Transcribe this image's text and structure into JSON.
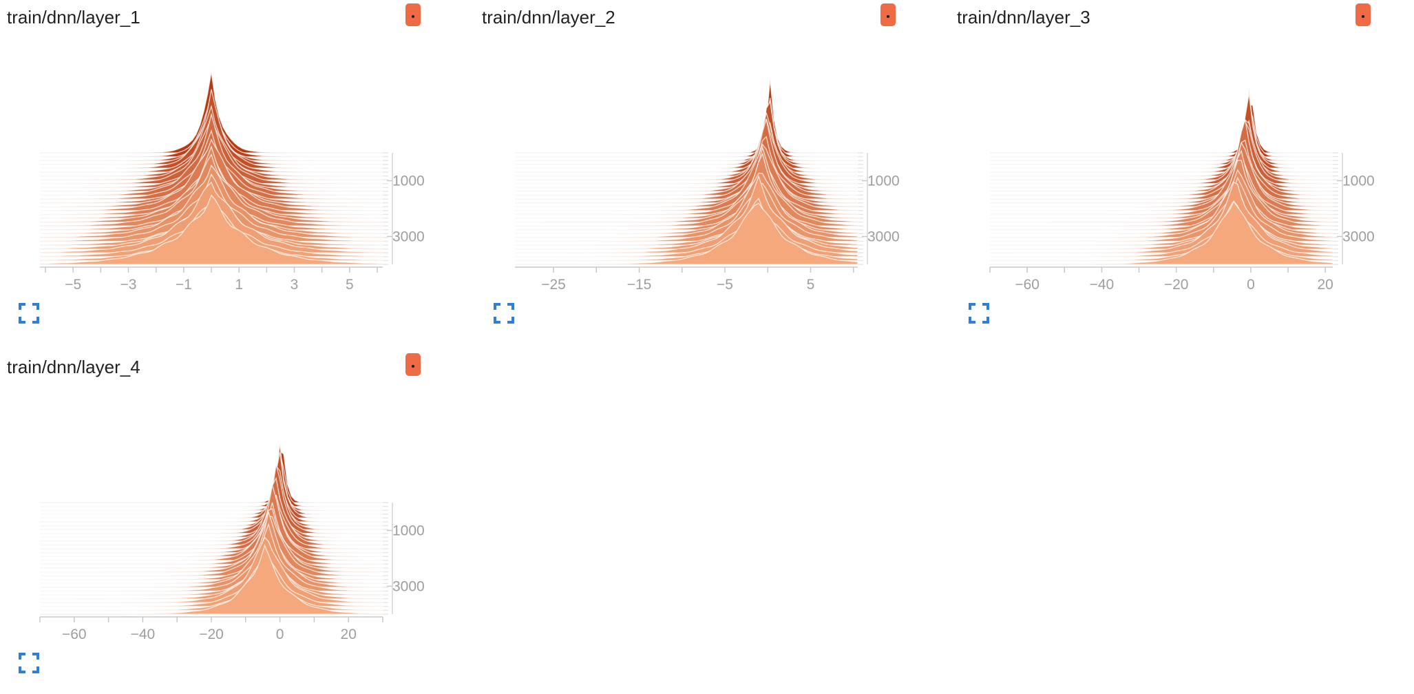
{
  "colors": {
    "dark": "#b53a12",
    "light": "#f4a87c",
    "chip": "#ef6b45",
    "grid": "#e6e6e6",
    "axis": "#c8c8c8",
    "tick_text": "#9e9e9e",
    "expand_icon": "#2f7fd8"
  },
  "cards": [
    {
      "title": "train/dnn/layer_1"
    },
    {
      "title": "train/dnn/layer_2"
    },
    {
      "title": "train/dnn/layer_3"
    },
    {
      "title": "train/dnn/layer_4"
    }
  ],
  "chart_data": [
    {
      "type": "area",
      "title": "train/dnn/layer_1",
      "xlim": [
        -6.2,
        6.2
      ],
      "x_ticks": [
        -5,
        -3,
        -1,
        1,
        3,
        5
      ],
      "x_tick_labels": [
        "−5",
        "−3",
        "−1",
        "1",
        "3",
        "5"
      ],
      "step_ticks": [
        1000,
        3000
      ],
      "step_tick_labels": [
        "1000",
        "3000"
      ],
      "step_range": [
        0,
        4000
      ],
      "num_steps": 30,
      "first_step": {
        "center": 0.0,
        "width": 0.45
      },
      "last_step": {
        "center": 0.0,
        "width": 1.6
      }
    },
    {
      "type": "area",
      "title": "train/dnn/layer_2",
      "xlim": [
        -29.5,
        10.5
      ],
      "x_ticks": [
        -25,
        -15,
        -5,
        5
      ],
      "x_tick_labels": [
        "−25",
        "−15",
        "−5",
        "5"
      ],
      "step_ticks": [
        1000,
        3000
      ],
      "step_tick_labels": [
        "1000",
        "3000"
      ],
      "step_range": [
        0,
        4000
      ],
      "num_steps": 30,
      "first_step": {
        "center": 0.3,
        "width": 0.6
      },
      "last_step": {
        "center": -1.2,
        "width": 4.0
      }
    },
    {
      "type": "area",
      "title": "train/dnn/layer_3",
      "xlim": [
        -70,
        22
      ],
      "x_ticks": [
        -60,
        -40,
        -20,
        0,
        20
      ],
      "x_tick_labels": [
        "−60",
        "−40",
        "−20",
        "0",
        "20"
      ],
      "step_ticks": [
        1000,
        3000
      ],
      "step_tick_labels": [
        "1000",
        "3000"
      ],
      "step_range": [
        0,
        4000
      ],
      "num_steps": 30,
      "first_step": {
        "center": 0.0,
        "width": 1.3
      },
      "last_step": {
        "center": -4.5,
        "width": 8.0
      }
    },
    {
      "type": "area",
      "title": "train/dnn/layer_4",
      "xlim": [
        -70,
        30
      ],
      "x_ticks": [
        -60,
        -40,
        -20,
        0,
        20
      ],
      "x_tick_labels": [
        "−60",
        "−40",
        "−20",
        "0",
        "20"
      ],
      "step_ticks": [
        1000,
        3000
      ],
      "step_tick_labels": [
        "1000",
        "3000"
      ],
      "step_range": [
        0,
        4000
      ],
      "num_steps": 30,
      "first_step": {
        "center": 0.5,
        "width": 1.3
      },
      "last_step": {
        "center": -4.5,
        "width": 7.5
      }
    }
  ]
}
